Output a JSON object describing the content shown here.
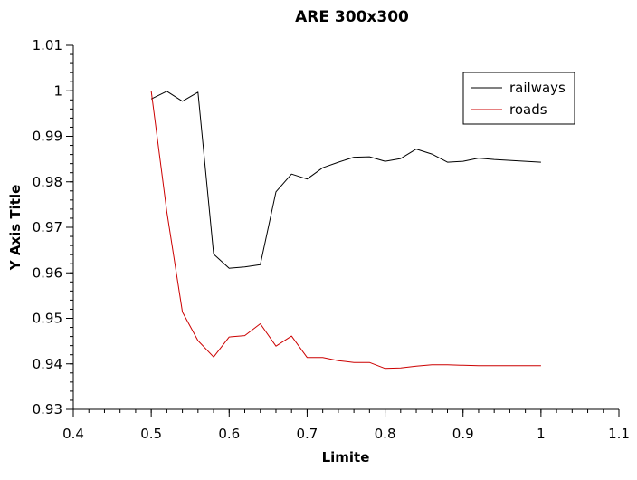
{
  "chart_data": {
    "type": "line",
    "title": "ARE 300x300",
    "xlabel": "Limite",
    "ylabel": "Y Axis Title",
    "xlim": [
      0.4,
      1.1
    ],
    "ylim": [
      0.93,
      1.01
    ],
    "x_ticks": [
      "0.4",
      "0.5",
      "0.6",
      "0.7",
      "0.8",
      "0.9",
      "1",
      "1.1"
    ],
    "y_ticks": [
      "0.93",
      "0.94",
      "0.95",
      "0.96",
      "0.97",
      "0.98",
      "0.99",
      "1",
      "1.01"
    ],
    "grid": false,
    "legend_position": "top-right",
    "series": [
      {
        "name": "railways",
        "color": "#000000",
        "x": [
          0.5,
          0.52,
          0.54,
          0.56,
          0.58,
          0.6,
          0.62,
          0.64,
          0.66,
          0.68,
          0.7,
          0.72,
          0.74,
          0.76,
          0.78,
          0.8,
          0.82,
          0.84,
          0.86,
          0.88,
          0.9,
          0.92,
          0.94,
          0.96,
          0.98,
          1.0
        ],
        "y": [
          0.9982,
          0.9999,
          0.9977,
          0.9997,
          0.9641,
          0.961,
          0.9613,
          0.9618,
          0.9778,
          0.9817,
          0.9806,
          0.9831,
          0.9843,
          0.9854,
          0.9855,
          0.9845,
          0.9851,
          0.9872,
          0.9861,
          0.9843,
          0.9845,
          0.9852,
          0.9849,
          0.9847,
          0.9845,
          0.9843
        ]
      },
      {
        "name": "roads",
        "color": "#cc0000",
        "x": [
          0.5,
          0.52,
          0.54,
          0.56,
          0.58,
          0.6,
          0.62,
          0.64,
          0.66,
          0.68,
          0.7,
          0.72,
          0.74,
          0.76,
          0.78,
          0.8,
          0.82,
          0.84,
          0.86,
          0.88,
          0.9,
          0.92,
          0.94,
          0.96,
          0.98,
          1.0
        ],
        "y": [
          1.0,
          0.9734,
          0.9514,
          0.9451,
          0.9415,
          0.9459,
          0.9462,
          0.9488,
          0.9439,
          0.9461,
          0.9414,
          0.9414,
          0.9407,
          0.9403,
          0.9403,
          0.939,
          0.9391,
          0.9395,
          0.9398,
          0.9398,
          0.9397,
          0.9396,
          0.9396,
          0.9396,
          0.9396,
          0.9396
        ]
      }
    ]
  }
}
